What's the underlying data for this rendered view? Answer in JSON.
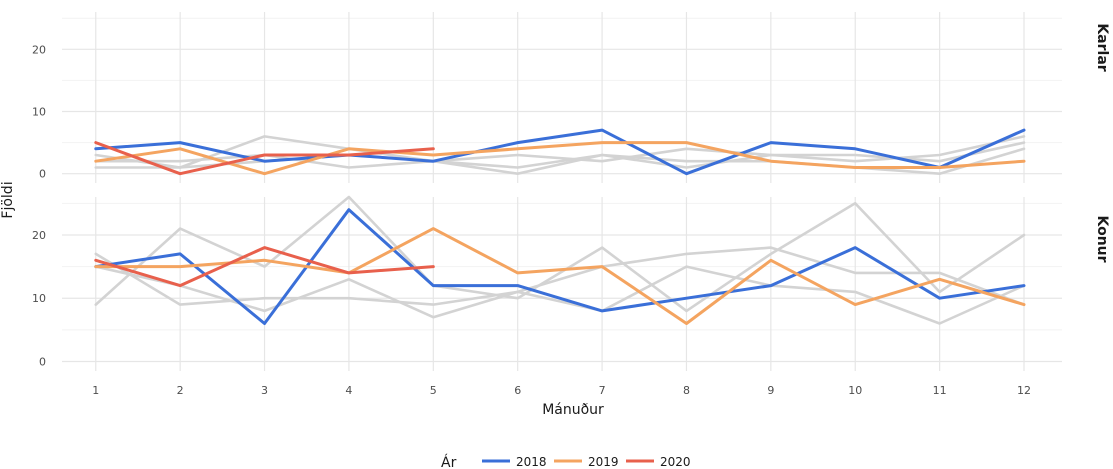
{
  "chart_data": {
    "type": "line",
    "xlabel": "Mánuður",
    "ylabel": "Fjöldi",
    "x": [
      1,
      2,
      3,
      4,
      5,
      6,
      7,
      8,
      9,
      10,
      11,
      12
    ],
    "ylim": [
      0,
      26
    ],
    "yticks": [
      0,
      10,
      20
    ],
    "grid": true,
    "legend": {
      "title": "Ár",
      "position": "bottom",
      "entries": [
        {
          "label": "2018",
          "color": "#3a6fd8"
        },
        {
          "label": "2019",
          "color": "#f4a460"
        },
        {
          "label": "2020",
          "color": "#e8604c"
        }
      ]
    },
    "background_color": "#d3d3d3",
    "panels": [
      {
        "label": "Karlar",
        "series": [
          {
            "name": "2018",
            "color": "#3a6fd8",
            "values": [
              4,
              5,
              2,
              3,
              2,
              5,
              7,
              0,
              5,
              4,
              1,
              7
            ]
          },
          {
            "name": "2019",
            "color": "#f4a460",
            "values": [
              2,
              4,
              0,
              4,
              3,
              4,
              5,
              5,
              2,
              1,
              1,
              2
            ]
          },
          {
            "name": "2020",
            "color": "#e8604c",
            "values": [
              5,
              0,
              3,
              3,
              4
            ]
          }
        ],
        "background": [
          {
            "values": [
              1,
              1,
              6,
              4,
              2,
              0,
              3,
              1,
              3,
              2,
              3,
              6
            ]
          },
          {
            "values": [
              2,
              2,
              3,
              1,
              2,
              3,
              2,
              4,
              3,
              3,
              2,
              5
            ]
          },
          {
            "values": [
              3,
              1,
              2,
              3,
              2,
              1,
              3,
              2,
              2,
              1,
              0,
              4
            ]
          }
        ]
      },
      {
        "label": "Konur",
        "series": [
          {
            "name": "2018",
            "color": "#3a6fd8",
            "values": [
              15,
              17,
              6,
              24,
              12,
              12,
              8,
              10,
              12,
              18,
              10,
              12
            ]
          },
          {
            "name": "2019",
            "color": "#f4a460",
            "values": [
              15,
              15,
              16,
              14,
              21,
              14,
              15,
              6,
              16,
              9,
              13,
              9
            ]
          },
          {
            "name": "2020",
            "color": "#e8604c",
            "values": [
              16,
              12,
              18,
              14,
              15
            ]
          }
        ],
        "background": [
          {
            "values": [
              9,
              21,
              15,
              26,
              12,
              10,
              18,
              8,
              17,
              25,
              11,
              20
            ]
          },
          {
            "values": [
              17,
              9,
              10,
              10,
              9,
              11,
              15,
              17,
              18,
              14,
              14,
              9
            ]
          },
          {
            "values": [
              15,
              12,
              8,
              13,
              7,
              11,
              8,
              15,
              12,
              11,
              6,
              12
            ]
          }
        ]
      }
    ]
  }
}
